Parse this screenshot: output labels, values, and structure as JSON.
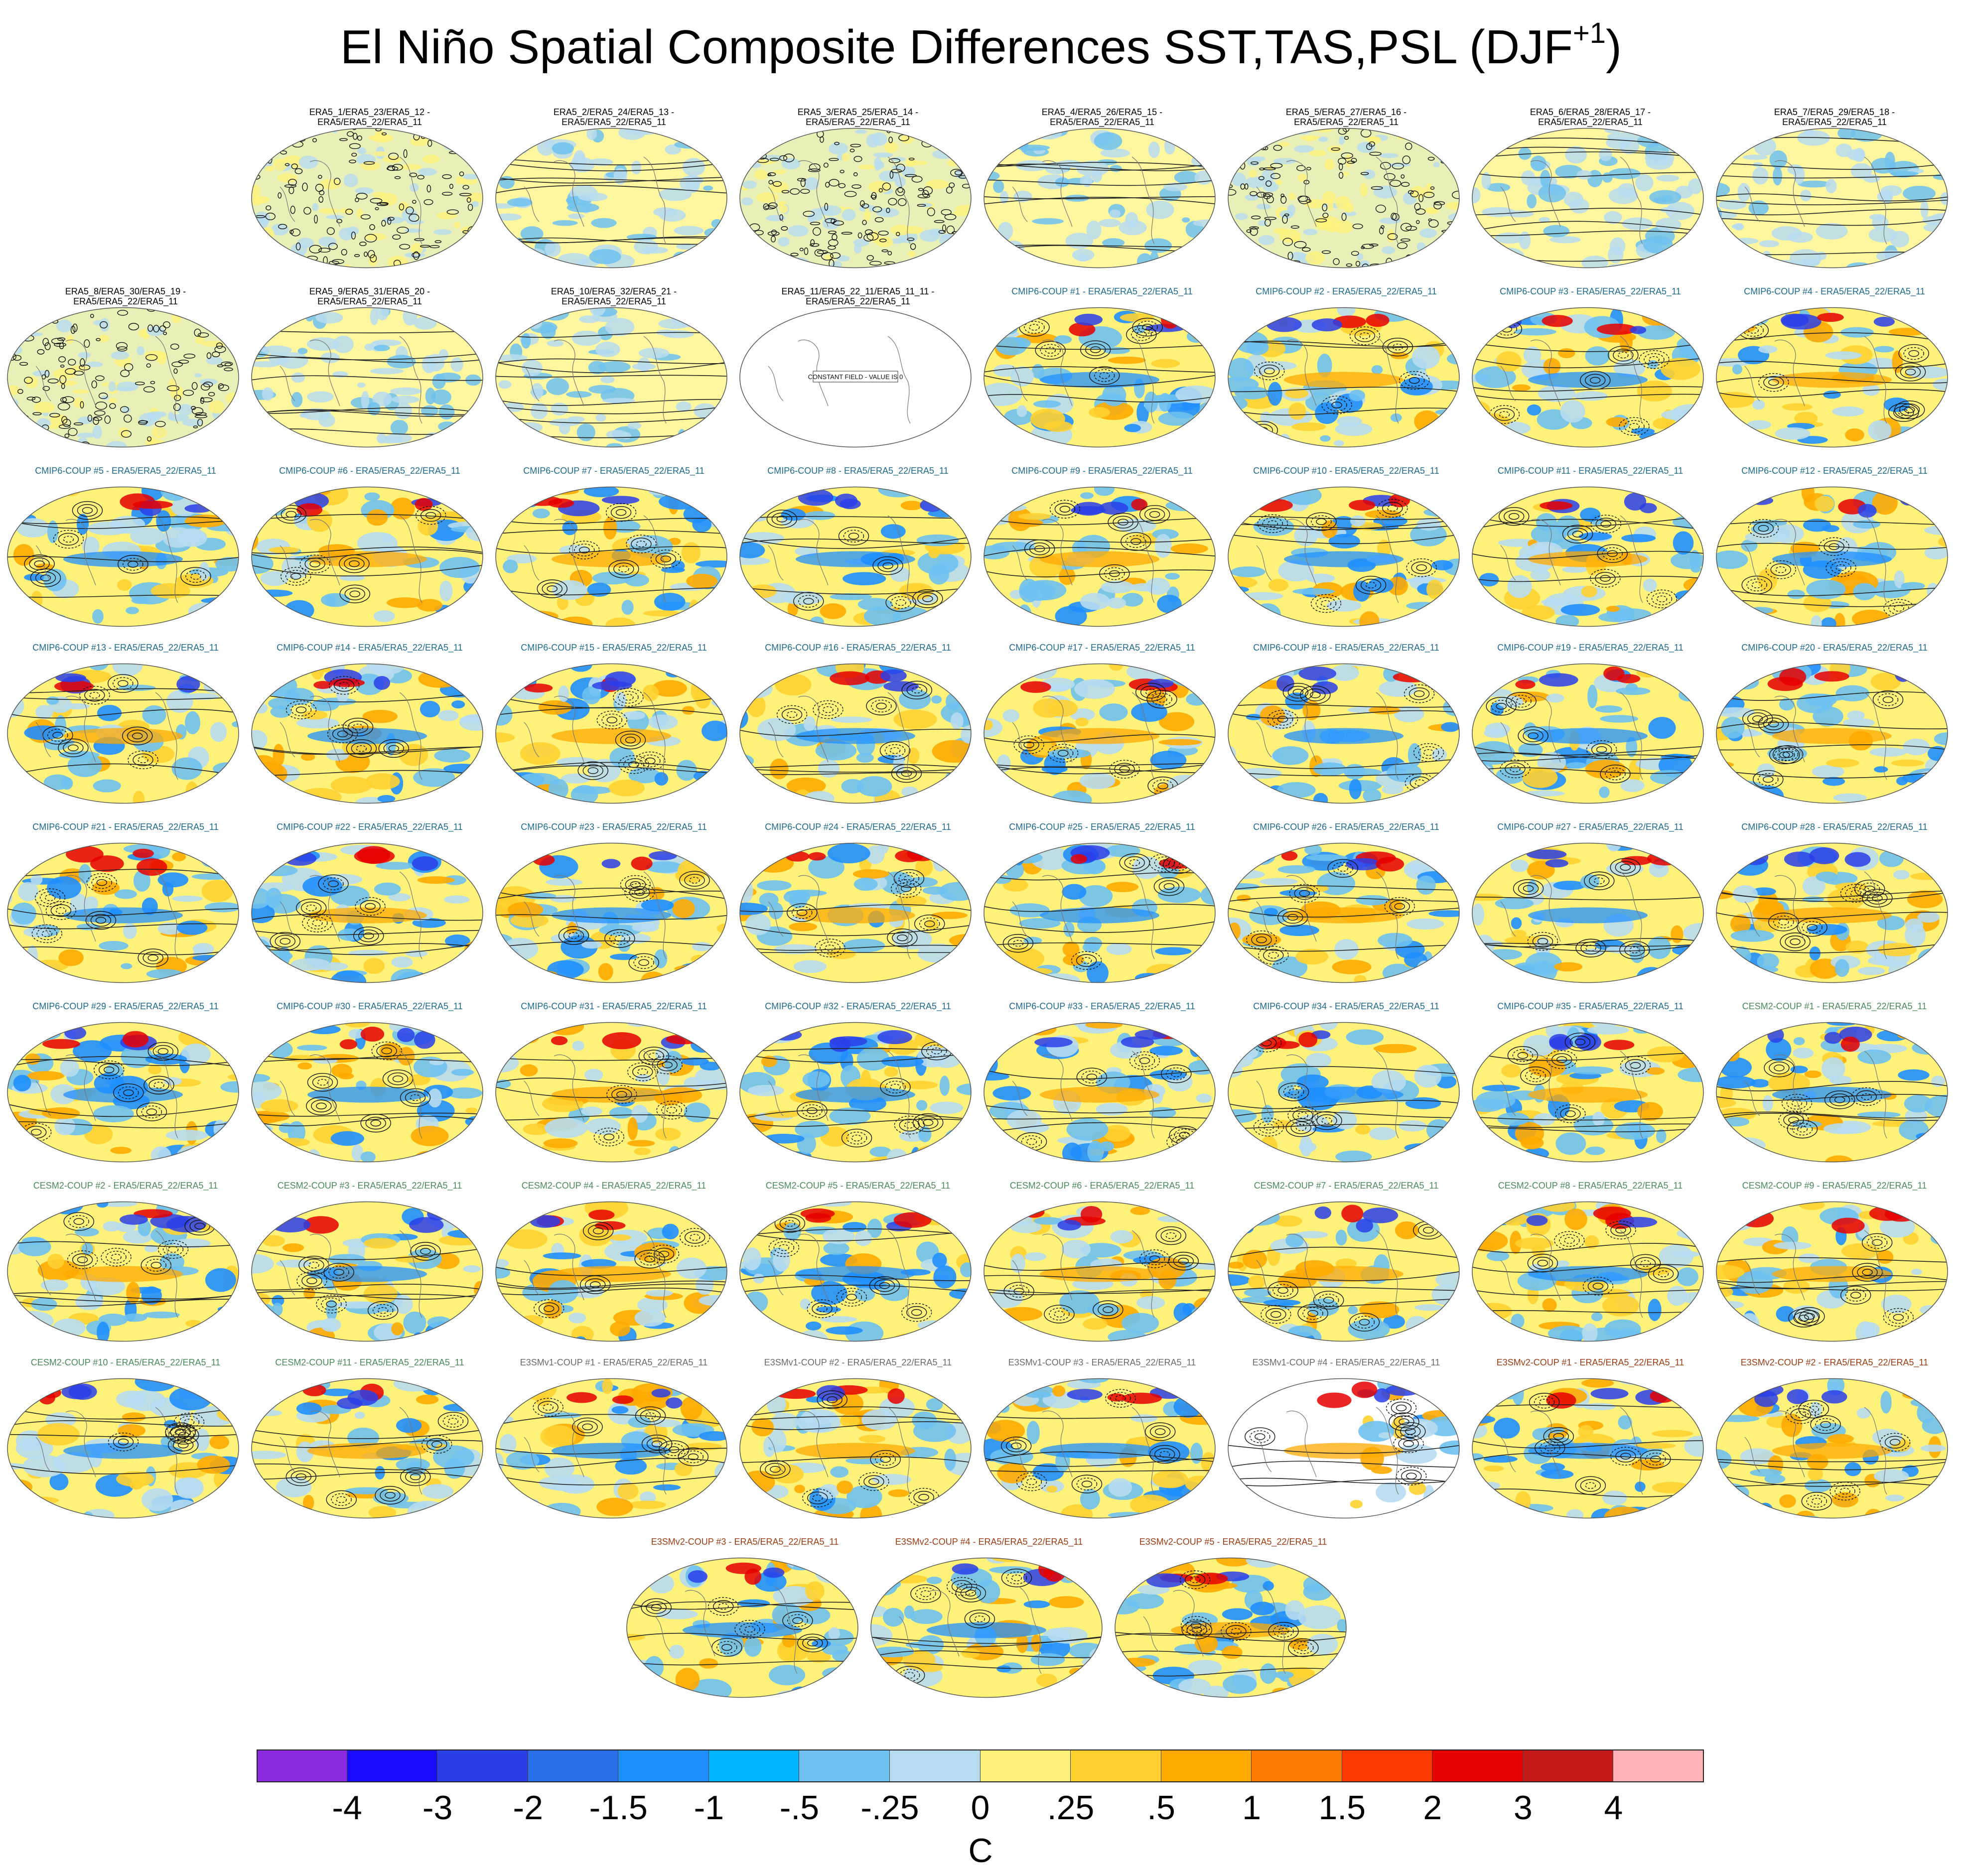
{
  "title": {
    "main": "El Niño Spatial Composite Differences SST,TAS,PSL (DJF",
    "superscript": "+1",
    "close": ")"
  },
  "panels": [
    {
      "label": "ERA5_1/ERA5_23/ERA5_12 -\nERA5/ERA5_22/ERA5_11",
      "group": "era5",
      "style": "noisy"
    },
    {
      "label": "ERA5_2/ERA5_24/ERA5_13 -\nERA5/ERA5_22/ERA5_11",
      "group": "era5",
      "style": "weak"
    },
    {
      "label": "ERA5_3/ERA5_25/ERA5_14 -\nERA5/ERA5_22/ERA5_11",
      "group": "era5",
      "style": "noisy"
    },
    {
      "label": "ERA5_4/ERA5_26/ERA5_15 -\nERA5/ERA5_22/ERA5_11",
      "group": "era5",
      "style": "weak"
    },
    {
      "label": "ERA5_5/ERA5_27/ERA5_16 -\nERA5/ERA5_22/ERA5_11",
      "group": "era5",
      "style": "noisy"
    },
    {
      "label": "ERA5_6/ERA5_28/ERA5_17 -\nERA5/ERA5_22/ERA5_11",
      "group": "era5",
      "style": "weak"
    },
    {
      "label": "ERA5_7/ERA5_29/ERA5_18 -\nERA5/ERA5_22/ERA5_11",
      "group": "era5",
      "style": "weak"
    },
    {
      "label": "ERA5_8/ERA5_30/ERA5_19 -\nERA5/ERA5_22/ERA5_11",
      "group": "era5",
      "style": "noisy"
    },
    {
      "label": "ERA5_9/ERA5_31/ERA5_20 -\nERA5/ERA5_22/ERA5_11",
      "group": "era5",
      "style": "weak"
    },
    {
      "label": "ERA5_10/ERA5_32/ERA5_21 -\nERA5/ERA5_22/ERA5_11",
      "group": "era5",
      "style": "weak"
    },
    {
      "label": "ERA5_11/ERA5_22_11/ERA5_11_11 -\nERA5/ERA5_22/ERA5_11",
      "group": "era5",
      "style": "blank",
      "note": "CONSTANT FIELD - VALUE IS 0"
    },
    {
      "label": "CMIP6-COUP  #1 - ERA5/ERA5_22/ERA5_11",
      "group": "cmip6",
      "style": "model"
    },
    {
      "label": "CMIP6-COUP  #2 - ERA5/ERA5_22/ERA5_11",
      "group": "cmip6",
      "style": "model"
    },
    {
      "label": "CMIP6-COUP  #3 - ERA5/ERA5_22/ERA5_11",
      "group": "cmip6",
      "style": "model"
    },
    {
      "label": "CMIP6-COUP  #4 - ERA5/ERA5_22/ERA5_11",
      "group": "cmip6",
      "style": "model"
    },
    {
      "label": "CMIP6-COUP  #5 - ERA5/ERA5_22/ERA5_11",
      "group": "cmip6",
      "style": "model"
    },
    {
      "label": "CMIP6-COUP  #6 - ERA5/ERA5_22/ERA5_11",
      "group": "cmip6",
      "style": "model"
    },
    {
      "label": "CMIP6-COUP  #7 - ERA5/ERA5_22/ERA5_11",
      "group": "cmip6",
      "style": "model"
    },
    {
      "label": "CMIP6-COUP  #8 - ERA5/ERA5_22/ERA5_11",
      "group": "cmip6",
      "style": "model"
    },
    {
      "label": "CMIP6-COUP  #9 - ERA5/ERA5_22/ERA5_11",
      "group": "cmip6",
      "style": "model"
    },
    {
      "label": "CMIP6-COUP  #10 - ERA5/ERA5_22/ERA5_11",
      "group": "cmip6",
      "style": "model"
    },
    {
      "label": "CMIP6-COUP  #11 - ERA5/ERA5_22/ERA5_11",
      "group": "cmip6",
      "style": "model"
    },
    {
      "label": "CMIP6-COUP  #12 - ERA5/ERA5_22/ERA5_11",
      "group": "cmip6",
      "style": "model"
    },
    {
      "label": "CMIP6-COUP  #13 - ERA5/ERA5_22/ERA5_11",
      "group": "cmip6",
      "style": "model"
    },
    {
      "label": "CMIP6-COUP  #14 - ERA5/ERA5_22/ERA5_11",
      "group": "cmip6",
      "style": "model"
    },
    {
      "label": "CMIP6-COUP  #15 - ERA5/ERA5_22/ERA5_11",
      "group": "cmip6",
      "style": "model"
    },
    {
      "label": "CMIP6-COUP  #16 - ERA5/ERA5_22/ERA5_11",
      "group": "cmip6",
      "style": "model"
    },
    {
      "label": "CMIP6-COUP  #17 - ERA5/ERA5_22/ERA5_11",
      "group": "cmip6",
      "style": "model"
    },
    {
      "label": "CMIP6-COUP  #18 - ERA5/ERA5_22/ERA5_11",
      "group": "cmip6",
      "style": "model"
    },
    {
      "label": "CMIP6-COUP  #19 - ERA5/ERA5_22/ERA5_11",
      "group": "cmip6",
      "style": "model"
    },
    {
      "label": "CMIP6-COUP  #20 - ERA5/ERA5_22/ERA5_11",
      "group": "cmip6",
      "style": "model"
    },
    {
      "label": "CMIP6-COUP  #21 - ERA5/ERA5_22/ERA5_11",
      "group": "cmip6",
      "style": "model"
    },
    {
      "label": "CMIP6-COUP  #22 - ERA5/ERA5_22/ERA5_11",
      "group": "cmip6",
      "style": "model"
    },
    {
      "label": "CMIP6-COUP  #23 - ERA5/ERA5_22/ERA5_11",
      "group": "cmip6",
      "style": "model"
    },
    {
      "label": "CMIP6-COUP  #24 - ERA5/ERA5_22/ERA5_11",
      "group": "cmip6",
      "style": "model"
    },
    {
      "label": "CMIP6-COUP  #25 - ERA5/ERA5_22/ERA5_11",
      "group": "cmip6",
      "style": "model"
    },
    {
      "label": "CMIP6-COUP  #26 - ERA5/ERA5_22/ERA5_11",
      "group": "cmip6",
      "style": "model"
    },
    {
      "label": "CMIP6-COUP  #27 - ERA5/ERA5_22/ERA5_11",
      "group": "cmip6",
      "style": "model"
    },
    {
      "label": "CMIP6-COUP  #28 - ERA5/ERA5_22/ERA5_11",
      "group": "cmip6",
      "style": "model"
    },
    {
      "label": "CMIP6-COUP  #29 - ERA5/ERA5_22/ERA5_11",
      "group": "cmip6",
      "style": "model"
    },
    {
      "label": "CMIP6-COUP  #30 - ERA5/ERA5_22/ERA5_11",
      "group": "cmip6",
      "style": "model"
    },
    {
      "label": "CMIP6-COUP  #31 - ERA5/ERA5_22/ERA5_11",
      "group": "cmip6",
      "style": "model"
    },
    {
      "label": "CMIP6-COUP  #32 - ERA5/ERA5_22/ERA5_11",
      "group": "cmip6",
      "style": "model"
    },
    {
      "label": "CMIP6-COUP  #33 - ERA5/ERA5_22/ERA5_11",
      "group": "cmip6",
      "style": "model"
    },
    {
      "label": "CMIP6-COUP  #34 - ERA5/ERA5_22/ERA5_11",
      "group": "cmip6",
      "style": "model"
    },
    {
      "label": "CMIP6-COUP  #35 - ERA5/ERA5_22/ERA5_11",
      "group": "cmip6",
      "style": "model"
    },
    {
      "label": "CESM2-COUP  #1 - ERA5/ERA5_22/ERA5_11",
      "group": "cesm2",
      "style": "model"
    },
    {
      "label": "CESM2-COUP  #2 - ERA5/ERA5_22/ERA5_11",
      "group": "cesm2",
      "style": "model"
    },
    {
      "label": "CESM2-COUP  #3 - ERA5/ERA5_22/ERA5_11",
      "group": "cesm2",
      "style": "model"
    },
    {
      "label": "CESM2-COUP  #4 - ERA5/ERA5_22/ERA5_11",
      "group": "cesm2",
      "style": "model"
    },
    {
      "label": "CESM2-COUP  #5 - ERA5/ERA5_22/ERA5_11",
      "group": "cesm2",
      "style": "model"
    },
    {
      "label": "CESM2-COUP  #6 - ERA5/ERA5_22/ERA5_11",
      "group": "cesm2",
      "style": "model"
    },
    {
      "label": "CESM2-COUP  #7 - ERA5/ERA5_22/ERA5_11",
      "group": "cesm2",
      "style": "model"
    },
    {
      "label": "CESM2-COUP  #8 - ERA5/ERA5_22/ERA5_11",
      "group": "cesm2",
      "style": "model"
    },
    {
      "label": "CESM2-COUP  #9 - ERA5/ERA5_22/ERA5_11",
      "group": "cesm2",
      "style": "model"
    },
    {
      "label": "CESM2-COUP  #10 - ERA5/ERA5_22/ERA5_11",
      "group": "cesm2",
      "style": "model"
    },
    {
      "label": "CESM2-COUP  #11 - ERA5/ERA5_22/ERA5_11",
      "group": "cesm2",
      "style": "model"
    },
    {
      "label": "E3SMv1-COUP #1 - ERA5/ERA5_22/ERA5_11",
      "group": "e3smv1",
      "style": "model"
    },
    {
      "label": "E3SMv1-COUP #2 - ERA5/ERA5_22/ERA5_11",
      "group": "e3smv1",
      "style": "model"
    },
    {
      "label": "E3SMv1-COUP #3 - ERA5/ERA5_22/ERA5_11",
      "group": "e3smv1",
      "style": "model"
    },
    {
      "label": "E3SMv1-COUP #4 - ERA5/ERA5_22/ERA5_11",
      "group": "e3smv1",
      "style": "partial"
    },
    {
      "label": "E3SMv2-COUP #1 - ERA5/ERA5_22/ERA5_11",
      "group": "e3smv2",
      "style": "model"
    },
    {
      "label": "E3SMv2-COUP #2 - ERA5/ERA5_22/ERA5_11",
      "group": "e3smv2",
      "style": "model"
    },
    {
      "label": "E3SMv2-COUP #3 - ERA5/ERA5_22/ERA5_11",
      "group": "e3smv2",
      "style": "model"
    },
    {
      "label": "E3SMv2-COUP #4 - ERA5/ERA5_22/ERA5_11",
      "group": "e3smv2",
      "style": "model"
    },
    {
      "label": "E3SMv2-COUP #5 - ERA5/ERA5_22/ERA5_11",
      "group": "e3smv2",
      "style": "model"
    }
  ],
  "colorbar": {
    "colors": [
      "#8a2be2",
      "#1a0dff",
      "#2a3ee8",
      "#2a6ee8",
      "#1f8fff",
      "#00b4ff",
      "#6ec1f0",
      "#b7dcf0",
      "#fff27a",
      "#ffd130",
      "#ffaa00",
      "#ff7a00",
      "#ff3a00",
      "#e60000",
      "#c41a1a",
      "#ffb3b8"
    ],
    "labels": [
      "-4",
      "-3",
      "-2",
      "-1.5",
      "-1",
      "-.5",
      "-.25",
      "0",
      ".25",
      ".5",
      "1",
      "1.5",
      "2",
      "3",
      "4"
    ],
    "units": "C"
  }
}
